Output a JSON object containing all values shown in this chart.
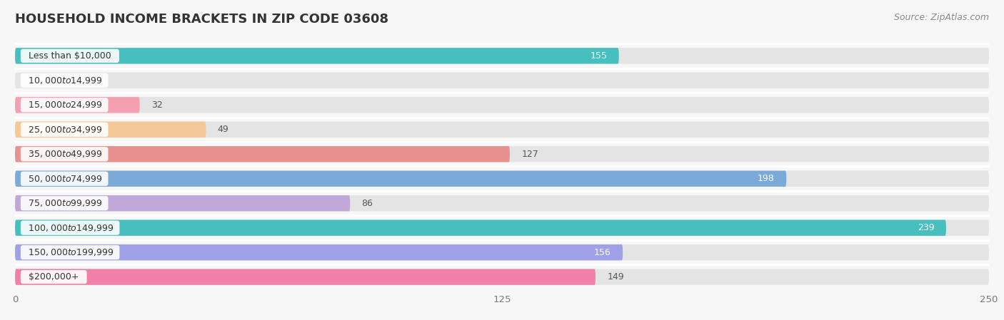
{
  "title": "HOUSEHOLD INCOME BRACKETS IN ZIP CODE 03608",
  "source": "Source: ZipAtlas.com",
  "categories": [
    "Less than $10,000",
    "$10,000 to $14,999",
    "$15,000 to $24,999",
    "$25,000 to $34,999",
    "$35,000 to $49,999",
    "$50,000 to $74,999",
    "$75,000 to $99,999",
    "$100,000 to $149,999",
    "$150,000 to $199,999",
    "$200,000+"
  ],
  "values": [
    155,
    0,
    32,
    49,
    127,
    198,
    86,
    239,
    156,
    149
  ],
  "bar_colors": [
    "#47BFBE",
    "#A8A8D8",
    "#F4A0B0",
    "#F5C897",
    "#E89090",
    "#7BAAD8",
    "#C0A8D8",
    "#47BFBE",
    "#A0A0E8",
    "#F080A8"
  ],
  "xlim": [
    0,
    250
  ],
  "xticks": [
    0,
    125,
    250
  ],
  "background_color": "#f7f7f7",
  "bar_bg_color": "#e4e4e4",
  "title_fontsize": 13,
  "label_fontsize": 9,
  "value_fontsize": 9,
  "source_fontsize": 9
}
